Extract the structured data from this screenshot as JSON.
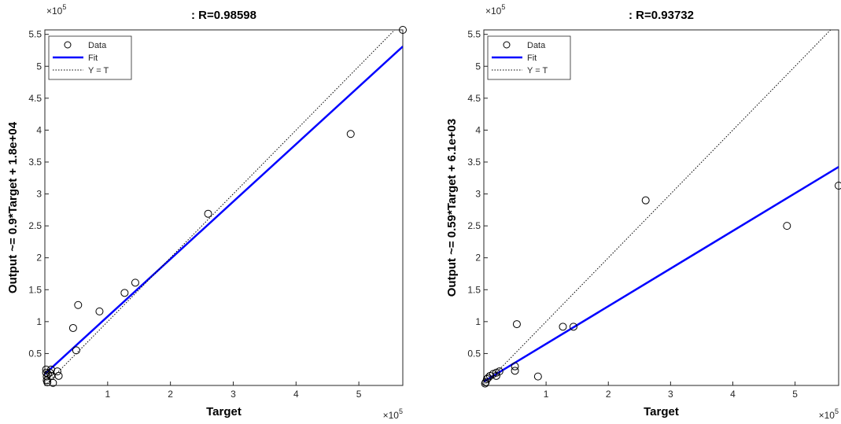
{
  "chart_data": [
    {
      "type": "scatter",
      "title": ": R=0.98598",
      "xlabel": "Target",
      "ylabel": "Output ~= 0.9*Target + 1.8e+04",
      "x_multiplier": {
        "base": "×10",
        "power": "5"
      },
      "y_multiplier": {
        "base": "×10",
        "power": "5"
      },
      "xlim": [
        0,
        5.7
      ],
      "ylim": [
        0,
        5.57
      ],
      "xticks": [
        1,
        2,
        3,
        4,
        5
      ],
      "yticks": [
        0.5,
        1,
        1.5,
        2,
        2.5,
        3,
        3.5,
        4,
        4.5,
        5,
        5.5
      ],
      "legend": "northwest",
      "series": [
        {
          "name": "Data",
          "color": "#000000",
          "x": [
            5.7,
            4.87,
            2.6,
            1.44,
            1.27,
            0.87,
            0.53,
            0.45,
            0.5,
            0.2,
            0.1,
            0.13,
            0.03,
            0.02,
            0.02,
            0.05,
            0.08,
            0.03,
            0.1,
            0.22,
            0.04
          ],
          "values": [
            5.57,
            3.94,
            2.69,
            1.61,
            1.45,
            1.16,
            1.26,
            0.9,
            0.55,
            0.22,
            0.15,
            0.04,
            0.08,
            0.2,
            0.25,
            0.18,
            0.2,
            0.14,
            0.25,
            0.15,
            0.05
          ]
        },
        {
          "name": "Fit",
          "color": "#0000ff",
          "slope": 0.9,
          "intercept": 0.18
        },
        {
          "name": "Y = T",
          "color": "#000000"
        }
      ]
    },
    {
      "type": "scatter",
      "title": ": R=0.93732",
      "xlabel": "Target",
      "ylabel": "Output ~= 0.59*Target + 6.1e+03",
      "x_multiplier": {
        "base": "×10",
        "power": "5"
      },
      "y_multiplier": {
        "base": "×10",
        "power": "5"
      },
      "xlim": [
        0,
        5.7
      ],
      "ylim": [
        0,
        5.57
      ],
      "xticks": [
        1,
        2,
        3,
        4,
        5
      ],
      "yticks": [
        0.5,
        1,
        1.5,
        2,
        2.5,
        3,
        3.5,
        4,
        4.5,
        5,
        5.5
      ],
      "legend": "northwest",
      "series": [
        {
          "name": "Data",
          "color": "#000000",
          "x": [
            5.7,
            4.87,
            2.6,
            1.44,
            1.27,
            0.53,
            0.87,
            0.5,
            0.5,
            0.2,
            0.2,
            0.1,
            0.05,
            0.03,
            0.02,
            0.15,
            0.07,
            0.25
          ],
          "values": [
            3.13,
            2.5,
            2.9,
            0.92,
            0.92,
            0.96,
            0.14,
            0.3,
            0.23,
            0.2,
            0.15,
            0.15,
            0.1,
            0.05,
            0.03,
            0.18,
            0.12,
            0.22
          ]
        },
        {
          "name": "Fit",
          "color": "#0000ff",
          "slope": 0.59,
          "intercept": 0.061
        },
        {
          "name": "Y = T",
          "color": "#000000"
        }
      ]
    }
  ]
}
